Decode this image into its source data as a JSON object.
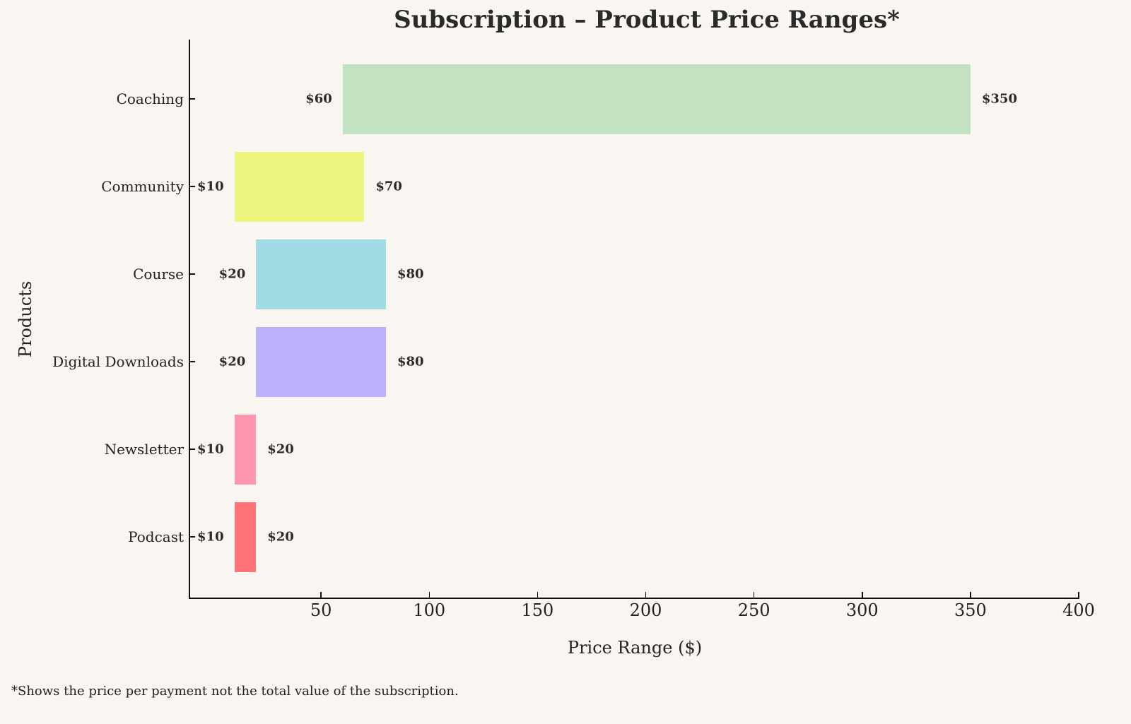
{
  "chart_data": {
    "type": "bar",
    "orientation": "horizontal",
    "subtype": "floating-range",
    "title": "Subscription – Product Price Ranges*",
    "xlabel": "Price Range ($)",
    "ylabel": "Products",
    "xlim": [
      -10.8,
      400
    ],
    "xticks": [
      50,
      100,
      150,
      200,
      250,
      300,
      350,
      400
    ],
    "grid": false,
    "legend": null,
    "categories": [
      "Coaching",
      "Community",
      "Course",
      "Digital Downloads",
      "Newsletter",
      "Podcast"
    ],
    "series": [
      {
        "name": "min_price",
        "values": [
          60,
          10,
          20,
          20,
          10,
          10
        ]
      },
      {
        "name": "max_price",
        "values": [
          350,
          70,
          80,
          80,
          20,
          20
        ]
      }
    ],
    "colors": [
      "#c3e2c2",
      "#ebf57e",
      "#a1dce5",
      "#bcb2fc",
      "#ff96b0",
      "#ff7479"
    ],
    "annotations": {
      "min_labels": [
        "$60",
        "$10",
        "$20",
        "$20",
        "$10",
        "$10"
      ],
      "max_labels": [
        "$350",
        "$70",
        "$80",
        "$80",
        "$20",
        "$20"
      ]
    },
    "footnote": "*Shows the price per payment not the total value of the subscription."
  },
  "title": "Subscription – Product Price Ranges*",
  "xlabel": "Price Range ($)",
  "ylabel": "Products",
  "xtick_labels": [
    "50",
    "100",
    "150",
    "200",
    "250",
    "300",
    "350",
    "400"
  ],
  "bars": [
    {
      "label": "Coaching",
      "min": "$60",
      "max": "$350"
    },
    {
      "label": "Community",
      "min": "$10",
      "max": "$70"
    },
    {
      "label": "Course",
      "min": "$20",
      "max": "$80"
    },
    {
      "label": "Digital Downloads",
      "min": "$20",
      "max": "$80"
    },
    {
      "label": "Newsletter",
      "min": "$10",
      "max": "$20"
    },
    {
      "label": "Podcast",
      "min": "$10",
      "max": "$20"
    }
  ],
  "footnote": "*Shows the price per payment not the total value of the subscription."
}
